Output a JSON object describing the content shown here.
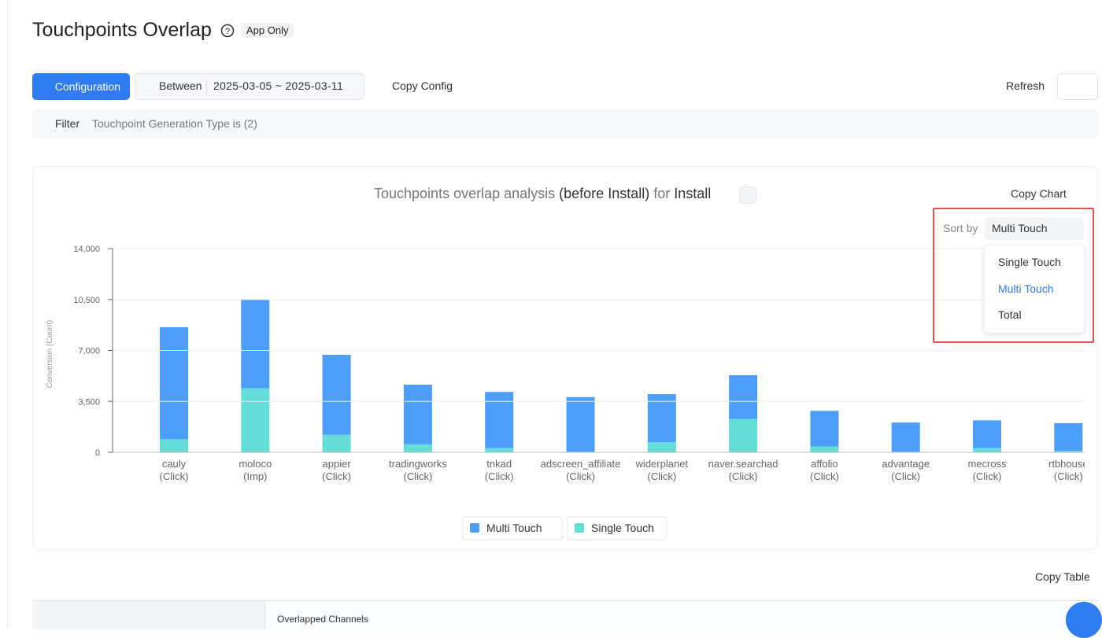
{
  "header": {
    "title": "Touchpoints Overlap",
    "badge": "App Only"
  },
  "toolbar": {
    "configuration": "Configuration",
    "between": "Between",
    "date_range": "2025-03-05 ~ 2025-03-11",
    "copy_config": "Copy Config",
    "refresh": "Refresh"
  },
  "filter": {
    "label": "Filter",
    "summary": "Touchpoint Generation Type is (2)"
  },
  "chart_panel": {
    "title_parts": [
      "Touchpoints overlap analysis",
      "(before Install)",
      "for",
      "Install"
    ],
    "copy_chart": "Copy Chart",
    "sort": {
      "label": "Sort by",
      "selected": "Multi Touch",
      "options": [
        "Single Touch",
        "Multi Touch",
        "Total"
      ]
    }
  },
  "chart_data": {
    "type": "stacked-bar",
    "y_label": "Conversion (Count)",
    "categories": [
      [
        "cauly",
        "(Click)"
      ],
      [
        "moloco",
        "(Imp)"
      ],
      [
        "appier",
        "(Click)"
      ],
      [
        "tradingworks",
        "(Click)"
      ],
      [
        "tnkad",
        "(Click)"
      ],
      [
        "adscreen_affiliate",
        "(Click)"
      ],
      [
        "widerplanet",
        "(Click)"
      ],
      [
        "naver.searchad",
        "(Click)"
      ],
      [
        "affolio",
        "(Click)"
      ],
      [
        "advantage",
        "(Click)"
      ],
      [
        "mecross",
        "(Click)"
      ],
      [
        "rtbhouse",
        "(Click)"
      ]
    ],
    "series": [
      {
        "name": "Multi Touch",
        "color": "#4d9ef8",
        "values": [
          7700,
          6100,
          5500,
          4100,
          3850,
          3750,
          3300,
          3000,
          2450,
          2000,
          1900,
          1900
        ]
      },
      {
        "name": "Single Touch",
        "color": "#63ddd5",
        "values": [
          900,
          4400,
          1200,
          550,
          300,
          50,
          700,
          2300,
          400,
          50,
          300,
          100
        ]
      }
    ],
    "ylim": [
      0,
      14000
    ],
    "yticks": [
      0,
      {
        "value": 3500,
        "label": "3,500"
      },
      {
        "value": 7000,
        "label": "7,000"
      },
      {
        "value": 10500,
        "label": "10,500"
      },
      {
        "value": 14000,
        "label": "14,000"
      }
    ],
    "grid": true
  },
  "table": {
    "copy_table": "Copy Table",
    "header": "Overlapped Channels"
  }
}
